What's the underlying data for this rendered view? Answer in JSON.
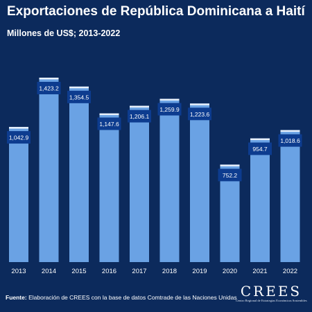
{
  "header": {
    "title": "Exportaciones de República Dominicana a Haití",
    "subtitle": "Millones de US$; 2013-2022"
  },
  "footer": {
    "source_label": "Fuente:",
    "source_text": "Elaboración de CREES con la base de datos Comtrade de las Naciones Unidas"
  },
  "logo": {
    "wordmark": "CREES",
    "subtitle": "Centro Regional de Estrategias Económicas Sostenibles"
  },
  "colors": {
    "background": "#0c2a5c",
    "bar": "#6aa2e4",
    "bar_top": "#e8f0fb",
    "label_box": "#0d3c8f"
  },
  "chart_data": {
    "type": "bar",
    "categories": [
      "2013",
      "2014",
      "2015",
      "2016",
      "2017",
      "2018",
      "2019",
      "2020",
      "2021",
      "2022"
    ],
    "values": [
      1042.9,
      1423.2,
      1354.5,
      1147.6,
      1206.1,
      1259.9,
      1223.6,
      752.2,
      954.7,
      1018.6
    ],
    "value_labels": [
      "1,042.9",
      "1,423.2",
      "1,354.5",
      "1,147.6",
      "1,206.1",
      "1,259.9",
      "1,223.6",
      "752.2",
      "954.7",
      "1,018.6"
    ],
    "title": "Exportaciones de República Dominicana a Haití",
    "subtitle": "Millones de US$; 2013-2022",
    "xlabel": "",
    "ylabel": "",
    "ylim": [
      0,
      1423.2
    ],
    "grid": false,
    "legend": "none"
  }
}
